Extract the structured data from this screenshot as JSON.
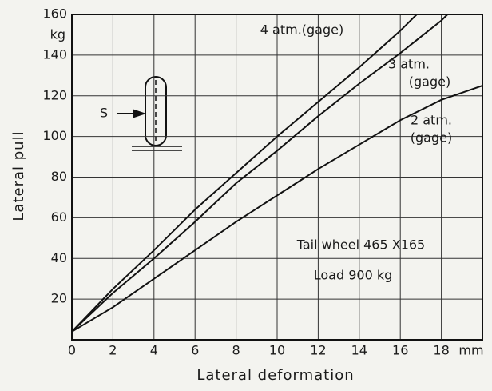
{
  "chart_data": {
    "type": "line",
    "x_label": "Lateral deformation",
    "y_label": "Lateral pull",
    "x_unit": "mm",
    "y_unit": "kg",
    "xlim": [
      0,
      20
    ],
    "ylim": [
      0,
      160
    ],
    "xticks": [
      0,
      2,
      4,
      6,
      8,
      10,
      12,
      14,
      16,
      18
    ],
    "yticks": [
      20,
      40,
      60,
      80,
      100,
      120,
      140,
      160
    ],
    "grid": true,
    "series": [
      {
        "name": "4 atm.(gage)",
        "color": "#111111",
        "x": [
          0,
          2,
          4,
          6,
          8,
          10,
          12,
          14,
          16,
          16.8
        ],
        "values": [
          4,
          25,
          44,
          64,
          82,
          100,
          117,
          134,
          152,
          160
        ]
      },
      {
        "name": "3 atm.",
        "color": "#111111",
        "x": [
          0,
          2,
          4,
          6,
          8,
          10,
          12,
          14,
          16,
          18,
          18.3
        ],
        "values": [
          4,
          23,
          40,
          58,
          77,
          93,
          110,
          126,
          141,
          157,
          160
        ]
      },
      {
        "name": "2 atm.",
        "color": "#111111",
        "x": [
          0,
          2,
          4,
          6,
          8,
          10,
          12,
          14,
          16,
          18,
          20
        ],
        "values": [
          4,
          16,
          30,
          44,
          58,
          71,
          84,
          96,
          108,
          118,
          125
        ]
      }
    ],
    "annotations": [
      "(gage)",
      "(gage)",
      "Tail wheel 465 X165",
      "Load 900 kg",
      "S"
    ]
  }
}
